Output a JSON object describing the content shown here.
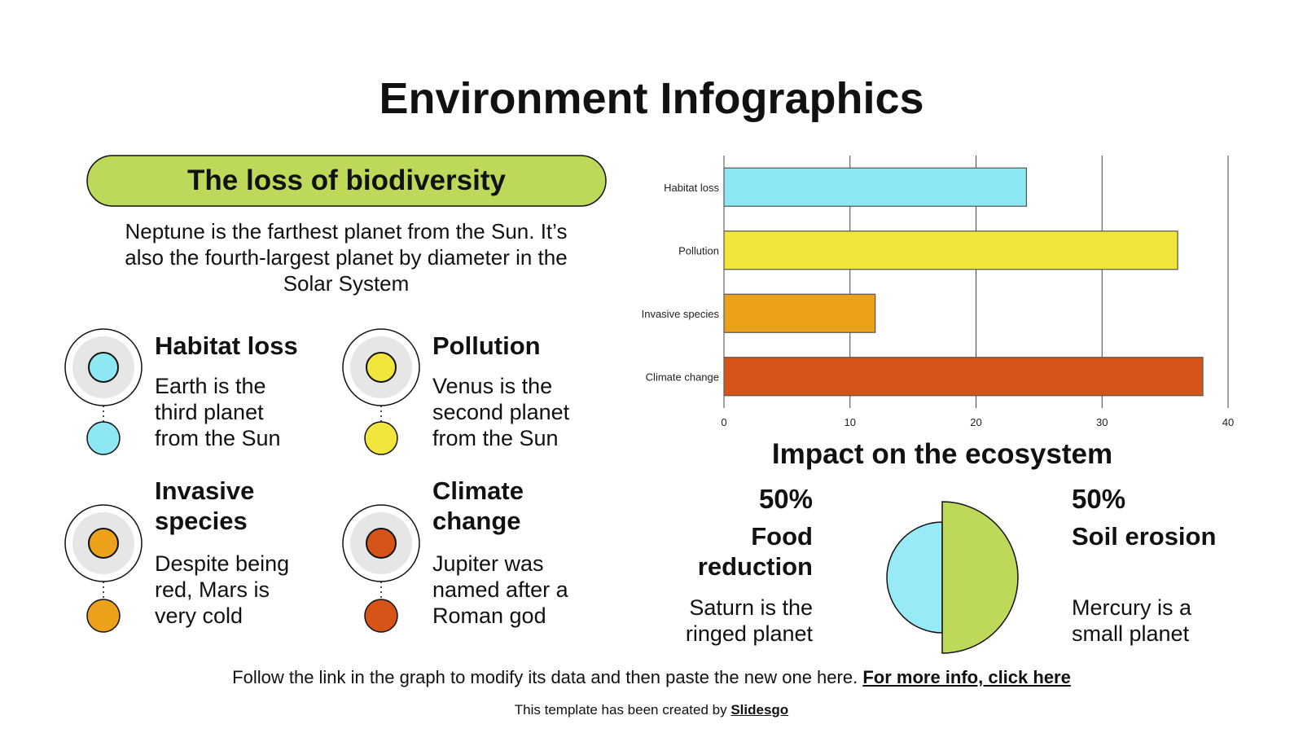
{
  "title": "Environment Infographics",
  "section": {
    "title": "The loss of biodiversity",
    "text": "Neptune is the farthest planet from the Sun. It’s also the fourth-largest planet by diameter in the Solar System"
  },
  "items": [
    {
      "title": "Habitat loss",
      "text": "Earth is the third planet from the Sun"
    },
    {
      "title": "Pollution",
      "text": "Venus is the second planet from the Sun"
    },
    {
      "title": "Invasive species",
      "text": "Despite being red, Mars is very cold"
    },
    {
      "title": "Climate change",
      "text": "Jupiter was named after a Roman god"
    }
  ],
  "chart_data": [
    {
      "type": "bar",
      "orientation": "horizontal",
      "categories": [
        "Habitat loss",
        "Pollution",
        "Invasive species",
        "Climate change"
      ],
      "values": [
        24,
        36,
        12,
        38
      ],
      "colors": [
        "#8ee8f4",
        "#f2e53c",
        "#eba21a",
        "#d65418"
      ],
      "xlim": [
        0,
        40
      ],
      "xticks": [
        0,
        10,
        20,
        30,
        40
      ],
      "grid": true
    },
    {
      "type": "pie",
      "title": "Impact on the ecosystem",
      "categories": [
        "Food reduction",
        "Soil erosion"
      ],
      "values": [
        50,
        50
      ],
      "value_labels": [
        "50%",
        "50%"
      ],
      "descriptions": [
        "Saturn is the ringed planet",
        "Mercury is a small planet"
      ],
      "colors": [
        "#98ebf6",
        "#bcd95a"
      ]
    }
  ],
  "footer": {
    "text": "Follow the link in the graph to modify its data and then paste the new one here.",
    "link": "For more info, click here",
    "credit": "This template has been created by",
    "credit_link": "Slidesgo"
  }
}
